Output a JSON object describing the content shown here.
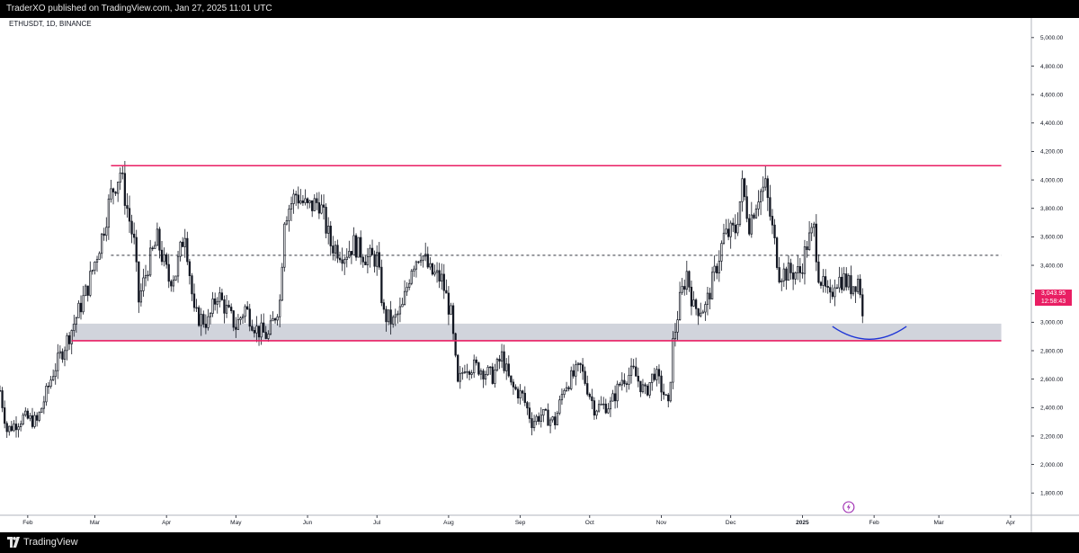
{
  "header": {
    "publish_line": "TraderXO published on TradingView.com, Jan 27, 2025 11:01 UTC"
  },
  "footer": {
    "brand": "TradingView"
  },
  "colors": {
    "resistance": "#e91e63",
    "zone": "#d1d4dc",
    "arc": "#1e35d6",
    "candle": "#131722",
    "badge": "#e91e63",
    "icon": "#9c27b0"
  },
  "price_badge": {
    "price": "3,043.95",
    "countdown": "12:58:43"
  },
  "chart_data": {
    "type": "candlestick",
    "symbol_label": "ETHUSDT, 1D, BINANCE",
    "timeframe": "1D",
    "exchange": "BINANCE",
    "ylim": [
      1650,
      5100
    ],
    "y_ticks": [
      1800,
      2000,
      2200,
      2400,
      2600,
      2800,
      3000,
      3200,
      3400,
      3600,
      3800,
      4000,
      4200,
      4400,
      4600,
      4800,
      5000
    ],
    "y_tick_labels": [
      "1,800.00",
      "2,000.00",
      "2,200.00",
      "2,400.00",
      "2,600.00",
      "2,800.00",
      "3,000.00",
      "3,200.00",
      "3,400.00",
      "3,600.00",
      "3,800.00",
      "4,000.00",
      "4,200.00",
      "4,400.00",
      "4,600.00",
      "4,800.00",
      "5,000.00"
    ],
    "x_range": [
      "2024-01-20",
      "2025-04-10"
    ],
    "x_ticks": [
      {
        "date": "2024-02-01",
        "label": "Feb",
        "bold": false
      },
      {
        "date": "2024-03-01",
        "label": "Mar",
        "bold": false
      },
      {
        "date": "2024-04-01",
        "label": "Apr",
        "bold": false
      },
      {
        "date": "2024-05-01",
        "label": "May",
        "bold": false
      },
      {
        "date": "2024-06-01",
        "label": "Jun",
        "bold": false
      },
      {
        "date": "2024-07-01",
        "label": "Jul",
        "bold": false
      },
      {
        "date": "2024-08-01",
        "label": "Aug",
        "bold": false
      },
      {
        "date": "2024-09-01",
        "label": "Sep",
        "bold": false
      },
      {
        "date": "2024-10-01",
        "label": "Oct",
        "bold": false
      },
      {
        "date": "2024-11-01",
        "label": "Nov",
        "bold": false
      },
      {
        "date": "2024-12-01",
        "label": "Dec",
        "bold": false
      },
      {
        "date": "2025-01-01",
        "label": "2025",
        "bold": true
      },
      {
        "date": "2025-02-01",
        "label": "Feb",
        "bold": false
      },
      {
        "date": "2025-03-01",
        "label": "Mar",
        "bold": false
      },
      {
        "date": "2025-04-01",
        "label": "Apr",
        "bold": false
      }
    ],
    "anchors": [
      [
        "2024-01-20",
        2520
      ],
      [
        "2024-01-23",
        2240
      ],
      [
        "2024-01-30",
        2330
      ],
      [
        "2024-02-05",
        2300
      ],
      [
        "2024-02-12",
        2650
      ],
      [
        "2024-02-20",
        2950
      ],
      [
        "2024-02-27",
        3250
      ],
      [
        "2024-03-04",
        3600
      ],
      [
        "2024-03-08",
        3900
      ],
      [
        "2024-03-12",
        4060
      ],
      [
        "2024-03-15",
        3800
      ],
      [
        "2024-03-18",
        3550
      ],
      [
        "2024-03-20",
        3150
      ],
      [
        "2024-03-24",
        3400
      ],
      [
        "2024-03-28",
        3580
      ],
      [
        "2024-04-02",
        3300
      ],
      [
        "2024-04-05",
        3350
      ],
      [
        "2024-04-09",
        3650
      ],
      [
        "2024-04-13",
        3050
      ],
      [
        "2024-04-19",
        3000
      ],
      [
        "2024-04-23",
        3200
      ],
      [
        "2024-05-01",
        2970
      ],
      [
        "2024-05-05",
        3100
      ],
      [
        "2024-05-10",
        2950
      ],
      [
        "2024-05-15",
        2900
      ],
      [
        "2024-05-20",
        3150
      ],
      [
        "2024-05-22",
        3750
      ],
      [
        "2024-05-27",
        3900
      ],
      [
        "2024-06-01",
        3800
      ],
      [
        "2024-06-06",
        3850
      ],
      [
        "2024-06-11",
        3550
      ],
      [
        "2024-06-17",
        3480
      ],
      [
        "2024-06-21",
        3550
      ],
      [
        "2024-06-27",
        3450
      ],
      [
        "2024-07-01",
        3450
      ],
      [
        "2024-07-04",
        3050
      ],
      [
        "2024-07-08",
        3000
      ],
      [
        "2024-07-12",
        3100
      ],
      [
        "2024-07-16",
        3400
      ],
      [
        "2024-07-20",
        3500
      ],
      [
        "2024-07-24",
        3350
      ],
      [
        "2024-07-29",
        3300
      ],
      [
        "2024-08-02",
        3050
      ],
      [
        "2024-08-05",
        2550
      ],
      [
        "2024-08-08",
        2700
      ],
      [
        "2024-08-14",
        2680
      ],
      [
        "2024-08-20",
        2620
      ],
      [
        "2024-08-24",
        2760
      ],
      [
        "2024-08-28",
        2550
      ],
      [
        "2024-09-02",
        2480
      ],
      [
        "2024-09-06",
        2300
      ],
      [
        "2024-09-10",
        2350
      ],
      [
        "2024-09-16",
        2300
      ],
      [
        "2024-09-20",
        2550
      ],
      [
        "2024-09-27",
        2680
      ],
      [
        "2024-10-03",
        2400
      ],
      [
        "2024-10-10",
        2420
      ],
      [
        "2024-10-15",
        2600
      ],
      [
        "2024-10-20",
        2650
      ],
      [
        "2024-10-25",
        2500
      ],
      [
        "2024-10-29",
        2650
      ],
      [
        "2024-11-02",
        2500
      ],
      [
        "2024-11-04",
        2400
      ],
      [
        "2024-11-06",
        2850
      ],
      [
        "2024-11-09",
        3150
      ],
      [
        "2024-11-12",
        3350
      ],
      [
        "2024-11-15",
        3100
      ],
      [
        "2024-11-20",
        3100
      ],
      [
        "2024-11-25",
        3400
      ],
      [
        "2024-11-28",
        3600
      ],
      [
        "2024-12-03",
        3650
      ],
      [
        "2024-12-06",
        3950
      ],
      [
        "2024-12-09",
        3700
      ],
      [
        "2024-12-13",
        3900
      ],
      [
        "2024-12-16",
        3950
      ],
      [
        "2024-12-19",
        3650
      ],
      [
        "2024-12-22",
        3350
      ],
      [
        "2024-12-26",
        3350
      ],
      [
        "2024-12-31",
        3350
      ],
      [
        "2025-01-03",
        3550
      ],
      [
        "2025-01-06",
        3650
      ],
      [
        "2025-01-08",
        3350
      ],
      [
        "2025-01-10",
        3250
      ],
      [
        "2025-01-13",
        3150
      ],
      [
        "2025-01-15",
        3300
      ],
      [
        "2025-01-19",
        3300
      ],
      [
        "2025-01-22",
        3250
      ],
      [
        "2025-01-25",
        3300
      ],
      [
        "2025-01-26",
        3230
      ],
      [
        "2025-01-27",
        3044
      ]
    ],
    "annotations": {
      "resistance_line": {
        "price": 4100,
        "from": "2024-03-08",
        "to": "2025-03-28"
      },
      "support_line": {
        "price": 2870,
        "from": "2024-02-20",
        "to": "2025-03-28"
      },
      "support_zone": {
        "low": 2870,
        "high": 2990,
        "from": "2024-02-20",
        "to": "2025-03-28"
      },
      "range_midline": {
        "price": 3470,
        "style": "dashed",
        "from": "2024-03-08",
        "to": "2025-03-28"
      },
      "arc": {
        "from": [
          "2025-01-14",
          2970
        ],
        "control": [
          "2025-01-30",
          2790
        ],
        "to": [
          "2025-02-15",
          2970
        ]
      },
      "last_price": 3043.95
    },
    "grid": false,
    "legend": "none"
  }
}
